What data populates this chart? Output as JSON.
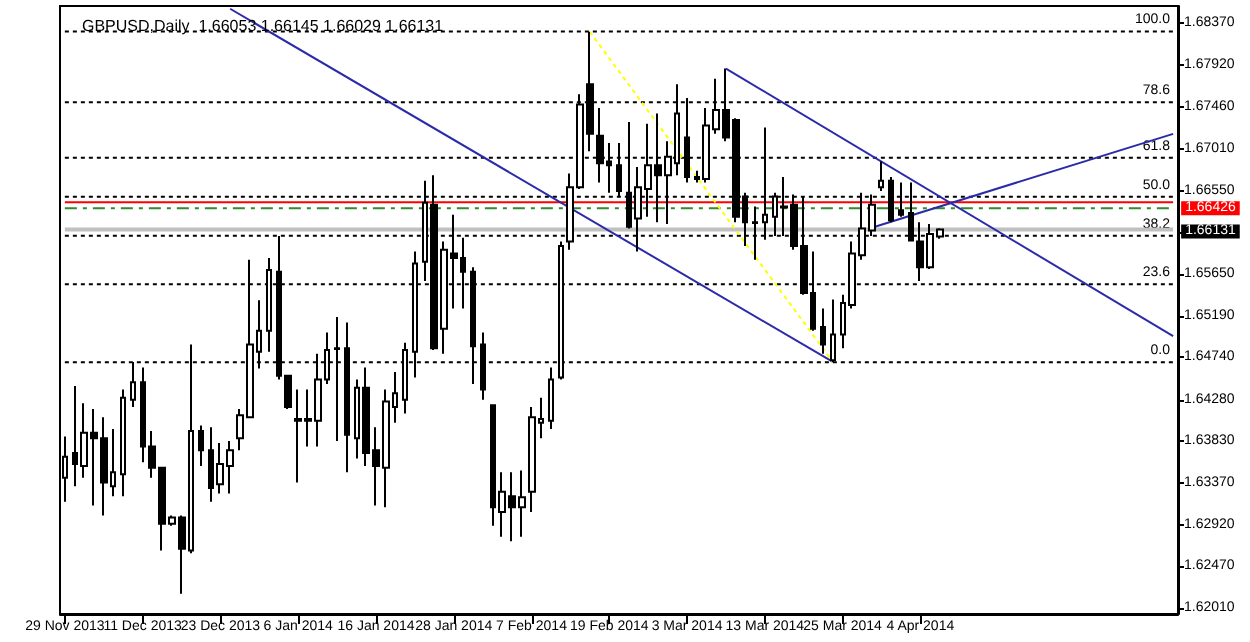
{
  "chart_data": {
    "type": "candlestick",
    "title": "GBPUSD,Daily  1.66053 1.66145 1.66029 1.66131",
    "categories": [
      "29 Nov 2013",
      null,
      null,
      null,
      null,
      null,
      null,
      null,
      "11 Dec 2013",
      null,
      null,
      null,
      null,
      null,
      null,
      null,
      "23 Dec 2013",
      null,
      null,
      null,
      null,
      null,
      null,
      null,
      "6 Jan 2014",
      null,
      null,
      null,
      null,
      null,
      null,
      null,
      "16 Jan 2014",
      null,
      null,
      null,
      null,
      null,
      null,
      null,
      "28 Jan 2014",
      null,
      null,
      null,
      null,
      null,
      null,
      null,
      "7 Feb 2014",
      null,
      null,
      null,
      null,
      null,
      null,
      null,
      "19 Feb 2014",
      null,
      null,
      null,
      null,
      null,
      null,
      null,
      "3 Mar 2014",
      null,
      null,
      null,
      null,
      null,
      null,
      null,
      "13 Mar 2014",
      null,
      null,
      null,
      null,
      null,
      null,
      null,
      "25 Mar 2014",
      null,
      null,
      null,
      null,
      null,
      null,
      null,
      "4 Apr 2014",
      null,
      null,
      null,
      null,
      null,
      null,
      null,
      null,
      null,
      null,
      null,
      null,
      null,
      null,
      null,
      null,
      null,
      null,
      null,
      null,
      null,
      null,
      null,
      null,
      null,
      null
    ],
    "series": [
      {
        "color": "#000000",
        "ohlc": [
          [
            1.6343,
            1.6388,
            1.6317,
            1.6366
          ],
          [
            1.637,
            1.6443,
            1.6334,
            1.6358
          ],
          [
            1.6356,
            1.6424,
            1.6343,
            1.6392
          ],
          [
            1.6392,
            1.6418,
            1.6313,
            1.6386
          ],
          [
            1.6386,
            1.6409,
            1.6302,
            1.6338
          ],
          [
            1.6334,
            1.6396,
            1.6323,
            1.6349
          ],
          [
            1.6347,
            1.6439,
            1.6323,
            1.643
          ],
          [
            1.6428,
            1.6469,
            1.642,
            1.6447
          ],
          [
            1.6447,
            1.6463,
            1.636,
            1.6377
          ],
          [
            1.6377,
            1.6394,
            1.6343,
            1.6354
          ],
          [
            1.6354,
            1.6355,
            1.6264,
            1.6293
          ],
          [
            1.6293,
            1.6302,
            1.6291,
            1.63
          ],
          [
            1.63,
            1.6302,
            1.6217,
            1.6266
          ],
          [
            1.6264,
            1.6488,
            1.6261,
            1.6394
          ],
          [
            1.6394,
            1.64,
            1.6356,
            1.6373
          ],
          [
            1.6373,
            1.6398,
            1.6317,
            1.6332
          ],
          [
            1.6336,
            1.6381,
            1.6326,
            1.6358
          ],
          [
            1.6356,
            1.6383,
            1.6326,
            1.6373
          ],
          [
            1.6386,
            1.6418,
            1.6373,
            1.6411
          ],
          [
            1.6409,
            1.658,
            1.6408,
            1.6488
          ],
          [
            1.648,
            1.6536,
            1.6462,
            1.6503
          ],
          [
            1.6503,
            1.6582,
            1.648,
            1.6569
          ],
          [
            1.6567,
            1.6606,
            1.645,
            1.6454
          ],
          [
            1.6454,
            1.6455,
            1.6418,
            1.642
          ],
          [
            1.6407,
            1.6439,
            1.6338,
            1.6405
          ],
          [
            1.6405,
            1.6439,
            1.6377,
            1.6407
          ],
          [
            1.6405,
            1.6478,
            1.6377,
            1.645
          ],
          [
            1.645,
            1.6501,
            1.6445,
            1.6482
          ],
          [
            1.6484,
            1.6518,
            1.6383,
            1.6483
          ],
          [
            1.6484,
            1.6512,
            1.6349,
            1.639
          ],
          [
            1.6386,
            1.645,
            1.6364,
            1.6441
          ],
          [
            1.6441,
            1.6463,
            1.6356,
            1.637
          ],
          [
            1.6373,
            1.6398,
            1.6313,
            1.6356
          ],
          [
            1.6354,
            1.6439,
            1.6311,
            1.6426
          ],
          [
            1.642,
            1.6458,
            1.6403,
            1.6435
          ],
          [
            1.6428,
            1.649,
            1.6413,
            1.6482
          ],
          [
            1.648,
            1.6589,
            1.6452,
            1.6576
          ],
          [
            1.6578,
            1.6666,
            1.6557,
            1.6642
          ],
          [
            1.664,
            1.6672,
            1.6482,
            1.6484
          ],
          [
            1.6505,
            1.66,
            1.6478,
            1.6591
          ],
          [
            1.6587,
            1.6629,
            1.6527,
            1.6582
          ],
          [
            1.6582,
            1.6604,
            1.6527,
            1.6567
          ],
          [
            1.6567,
            1.6572,
            1.6445,
            1.6486
          ],
          [
            1.6488,
            1.6501,
            1.6428,
            1.6439
          ],
          [
            1.6422,
            1.6423,
            1.6291,
            1.6311
          ],
          [
            1.6306,
            1.6349,
            1.6279,
            1.6328
          ],
          [
            1.6323,
            1.6349,
            1.6274,
            1.6311
          ],
          [
            1.6311,
            1.6351,
            1.6279,
            1.6322
          ],
          [
            1.6328,
            1.642,
            1.6306,
            1.6409
          ],
          [
            1.6403,
            1.643,
            1.6386,
            1.6407
          ],
          [
            1.6405,
            1.6463,
            1.6396,
            1.645
          ],
          [
            1.6452,
            1.66,
            1.645,
            1.6595
          ],
          [
            1.66,
            1.6674,
            1.6591,
            1.6659
          ],
          [
            1.6659,
            1.676,
            1.6657,
            1.6749
          ],
          [
            1.6771,
            1.6828,
            1.6698,
            1.6717
          ],
          [
            1.6715,
            1.6745,
            1.6664,
            1.6685
          ],
          [
            1.6687,
            1.6707,
            1.6653,
            1.6683
          ],
          [
            1.6683,
            1.6707,
            1.6649,
            1.6655
          ],
          [
            1.6653,
            1.673,
            1.6614,
            1.6616
          ],
          [
            1.6625,
            1.6681,
            1.6589,
            1.6659
          ],
          [
            1.6657,
            1.6728,
            1.6627,
            1.6683
          ],
          [
            1.6683,
            1.6739,
            1.6621,
            1.6672
          ],
          [
            1.6672,
            1.6709,
            1.6619,
            1.6692
          ],
          [
            1.6685,
            1.6771,
            1.6672,
            1.6739
          ],
          [
            1.6713,
            1.6756,
            1.6664,
            1.667
          ],
          [
            1.667,
            1.6677,
            1.6664,
            1.6668
          ],
          [
            1.6668,
            1.6745,
            1.6664,
            1.6726
          ],
          [
            1.6722,
            1.6777,
            1.6717,
            1.6743
          ],
          [
            1.6743,
            1.6788,
            1.6709,
            1.6713
          ],
          [
            1.6732,
            1.6734,
            1.6621,
            1.6627
          ],
          [
            1.6649,
            1.6653,
            1.6595,
            1.6621
          ],
          [
            1.6621,
            1.6638,
            1.658,
            1.662
          ],
          [
            1.6621,
            1.6724,
            1.6602,
            1.6629
          ],
          [
            1.6627,
            1.6653,
            1.6606,
            1.6649
          ],
          [
            1.6638,
            1.667,
            1.6606,
            1.6637
          ],
          [
            1.664,
            1.6651,
            1.6591,
            1.6595
          ],
          [
            1.6595,
            1.6649,
            1.6542,
            1.6544
          ],
          [
            1.6544,
            1.6589,
            1.6503,
            1.6505
          ],
          [
            1.6507,
            1.6527,
            1.6478,
            1.6488
          ],
          [
            1.6471,
            1.6537,
            1.6469,
            1.6499
          ],
          [
            1.6499,
            1.6542,
            1.6484,
            1.6533
          ],
          [
            1.6531,
            1.66,
            1.6527,
            1.6587
          ],
          [
            1.6585,
            1.6653,
            1.658,
            1.6614
          ],
          [
            1.6612,
            1.6651,
            1.6606,
            1.664
          ],
          [
            1.6659,
            1.6687,
            1.6655,
            1.6666
          ],
          [
            1.6666,
            1.667,
            1.6621,
            1.6623
          ],
          [
            1.6634,
            1.6664,
            1.6627,
            1.6629
          ],
          [
            1.6631,
            1.6664,
            1.66,
            1.6601
          ],
          [
            1.66,
            1.6621,
            1.6557,
            1.6572
          ],
          [
            1.6572,
            1.6619,
            1.657,
            1.6608
          ],
          [
            1.66053,
            1.66145,
            1.66029,
            1.66131
          ],
          null,
          null,
          null,
          null,
          null,
          null,
          null,
          null,
          null,
          null,
          null,
          null,
          null,
          null,
          null,
          null,
          null,
          null,
          null,
          null,
          null,
          null,
          null,
          null
        ]
      },
      {
        "type": "line",
        "color": "#2b2ba8",
        "values": [
          null,
          null,
          null,
          null,
          null,
          null,
          null,
          null,
          null,
          null,
          null,
          null,
          null,
          null,
          null,
          null,
          null,
          1.6853,
          null,
          null,
          null,
          null,
          null,
          null,
          null,
          null,
          null,
          null,
          null,
          null,
          null,
          null,
          null,
          null,
          null,
          null,
          null,
          null,
          null,
          null,
          null,
          null,
          null,
          null,
          null,
          null,
          null,
          null,
          null,
          null,
          null,
          null,
          null,
          null,
          null,
          null,
          null,
          null,
          null,
          null,
          null,
          null,
          null,
          null,
          null,
          null,
          null,
          null,
          null,
          null,
          null,
          null,
          null,
          null,
          null,
          null,
          null,
          null,
          null,
          1.6469,
          null,
          null,
          null,
          null,
          null,
          null,
          null,
          null,
          null,
          null,
          null,
          null,
          null,
          null,
          null,
          null,
          null,
          null,
          null,
          null,
          null,
          null,
          null,
          null,
          null,
          null,
          null,
          null,
          null,
          null,
          null,
          null,
          null,
          null,
          null
        ]
      },
      {
        "type": "line",
        "color": "#2b2ba8",
        "values": [
          null,
          null,
          null,
          null,
          null,
          null,
          null,
          null,
          null,
          null,
          null,
          null,
          null,
          null,
          null,
          null,
          null,
          null,
          null,
          null,
          null,
          null,
          null,
          null,
          null,
          null,
          null,
          null,
          null,
          null,
          null,
          null,
          null,
          null,
          null,
          null,
          null,
          null,
          null,
          null,
          null,
          null,
          null,
          null,
          null,
          null,
          null,
          null,
          null,
          null,
          null,
          null,
          null,
          null,
          null,
          null,
          null,
          null,
          null,
          null,
          null,
          null,
          null,
          null,
          null,
          null,
          null,
          null,
          null,
          null,
          null,
          null,
          null,
          null,
          null,
          null,
          null,
          null,
          null,
          null,
          null,
          null,
          null,
          1.6615,
          null,
          null,
          null,
          null,
          null,
          null,
          null,
          null,
          null,
          null,
          null,
          null,
          null,
          null,
          null,
          null,
          null,
          null,
          null,
          null,
          null,
          null,
          null,
          null,
          null,
          null,
          null,
          null,
          null,
          null,
          1.6717
        ]
      },
      {
        "type": "line",
        "color": "#2b2ba8",
        "values": [
          null,
          null,
          null,
          null,
          null,
          null,
          null,
          null,
          null,
          null,
          null,
          null,
          null,
          null,
          null,
          null,
          null,
          null,
          null,
          null,
          null,
          null,
          null,
          null,
          null,
          null,
          null,
          null,
          null,
          null,
          null,
          null,
          null,
          null,
          null,
          null,
          null,
          null,
          null,
          null,
          null,
          null,
          null,
          null,
          null,
          null,
          null,
          null,
          null,
          null,
          null,
          null,
          null,
          null,
          null,
          null,
          null,
          null,
          null,
          null,
          null,
          null,
          null,
          null,
          null,
          null,
          null,
          null,
          1.6788,
          null,
          null,
          null,
          null,
          null,
          null,
          null,
          null,
          null,
          null,
          null,
          null,
          null,
          null,
          null,
          null,
          null,
          null,
          null,
          null,
          null,
          null,
          null,
          null,
          null,
          null,
          null,
          null,
          null,
          null,
          null,
          null,
          null,
          null,
          null,
          null,
          null,
          null,
          null,
          null,
          null,
          null,
          null,
          null,
          null,
          1.6497
        ]
      },
      {
        "type": "line",
        "color": "#ffff00",
        "line_style": "dotted",
        "values": [
          null,
          null,
          null,
          null,
          null,
          null,
          null,
          null,
          null,
          null,
          null,
          null,
          null,
          null,
          null,
          null,
          null,
          null,
          null,
          null,
          null,
          null,
          null,
          null,
          null,
          null,
          null,
          null,
          null,
          null,
          null,
          null,
          null,
          null,
          null,
          null,
          null,
          null,
          null,
          null,
          null,
          null,
          null,
          null,
          null,
          null,
          null,
          null,
          null,
          null,
          null,
          null,
          null,
          null,
          1.6828,
          null,
          null,
          null,
          null,
          null,
          null,
          null,
          null,
          null,
          null,
          null,
          null,
          null,
          null,
          null,
          null,
          null,
          null,
          null,
          null,
          null,
          null,
          null,
          null,
          1.6469,
          null,
          null,
          null,
          null,
          null,
          null,
          null,
          null,
          null,
          null,
          null,
          null,
          null,
          null,
          null,
          null,
          null,
          null,
          null,
          null,
          null,
          null,
          null,
          null,
          null,
          null,
          null,
          null,
          null,
          null,
          null,
          null,
          null,
          null,
          null
        ]
      }
    ],
    "ylim": [
      1.6195,
      1.6856
    ],
    "yticks": [
      {
        "value": 1.6837,
        "label": "1.68370"
      },
      {
        "value": 1.6792,
        "label": "1.67920"
      },
      {
        "value": 1.6746,
        "label": "1.67460"
      },
      {
        "value": 1.6701,
        "label": "1.67010"
      },
      {
        "value": 1.6655,
        "label": "1.66550"
      },
      {
        "value": 1.6609,
        "label": null
      },
      {
        "value": 1.6565,
        "label": "1.65650"
      },
      {
        "value": 1.6519,
        "label": "1.65190"
      },
      {
        "value": 1.6474,
        "label": "1.64740"
      },
      {
        "value": 1.6428,
        "label": "1.64280"
      },
      {
        "value": 1.6383,
        "label": "1.63830"
      },
      {
        "value": 1.6337,
        "label": "1.63370"
      },
      {
        "value": 1.6292,
        "label": "1.62920"
      },
      {
        "value": 1.6247,
        "label": "1.62470"
      },
      {
        "value": 1.6201,
        "label": "1.62010"
      }
    ],
    "ref_lines": [
      {
        "axis": "y",
        "value": 1.6636,
        "color": "#2e8b2e",
        "line_style": "dashed"
      },
      {
        "axis": "y",
        "value": 1.66131,
        "label": "1.66131",
        "color": "#c0c0c0",
        "line_style": "solid"
      },
      {
        "axis": "y",
        "value": 1.66426,
        "label": "1.66426",
        "color": "#ff0000",
        "line_style": "solid"
      },
      {
        "axis": "y",
        "value": 1.68284,
        "color": "#000000",
        "line_style": "dotted"
      },
      {
        "axis": "y",
        "value": 1.67514,
        "color": "#000000",
        "line_style": "dotted"
      },
      {
        "axis": "y",
        "value": 1.6691,
        "color": "#000000",
        "line_style": "dotted"
      },
      {
        "axis": "y",
        "value": 1.66486,
        "color": "#000000",
        "line_style": "dotted"
      },
      {
        "axis": "y",
        "value": 1.66061,
        "color": "#000000",
        "line_style": "dotted"
      },
      {
        "axis": "y",
        "value": 1.65536,
        "color": "#000000",
        "line_style": "dotted"
      },
      {
        "axis": "y",
        "value": 1.64687,
        "color": "#000000",
        "line_style": "dotted"
      }
    ],
    "annotations": [
      "100.0",
      "78.6",
      "61.8",
      "50.0",
      "38.2",
      "23.6",
      "0.0"
    ],
    "grid": false
  }
}
